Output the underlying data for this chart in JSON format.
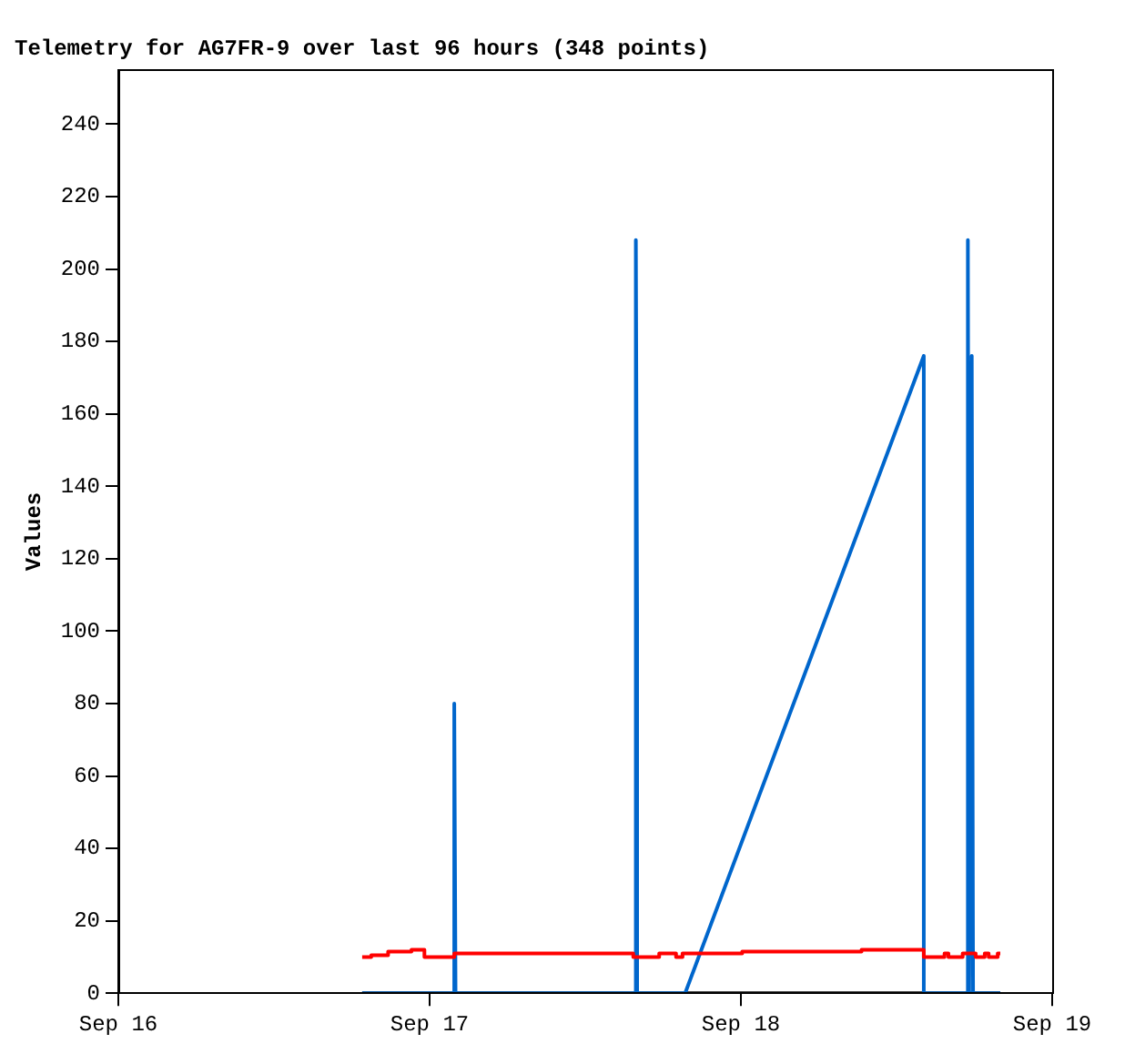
{
  "chart_data": {
    "type": "line",
    "title": "Telemetry for AG7FR-9 over last 96 hours (348 points)",
    "ylabel": "Values",
    "xlim": [
      "--09-16",
      "--09-19"
    ],
    "xticks": [
      {
        "value": "--09-16",
        "label": "Sep 16"
      },
      {
        "value": "--09-17",
        "label": "Sep 17"
      },
      {
        "value": "--09-18",
        "label": "Sep 18"
      },
      {
        "value": "--09-19",
        "label": "Sep 19"
      }
    ],
    "ylim": [
      0,
      255
    ],
    "yticks": [
      0,
      20,
      40,
      60,
      80,
      100,
      120,
      140,
      160,
      180,
      200,
      220,
      240
    ],
    "grid": false,
    "legend": false,
    "marker": "none",
    "line_style": "solid",
    "series": [
      {
        "type": "step",
        "color": "#ff0000",
        "x": [
          "--09-16T18:48",
          "--09-16T19:30",
          "--09-16T20:48",
          "--09-16T22:36",
          "--09-16T23:36",
          "--09-17T01:54",
          "--09-17T15:42",
          "--09-17T17:42",
          "--09-17T19:00",
          "--09-17T19:30",
          "--09-18T00:06",
          "--09-18T09:18",
          "--09-18T14:06",
          "--09-18T15:42",
          "--09-18T16:00",
          "--09-18T17:06",
          "--09-18T18:06",
          "--09-18T18:48",
          "--09-18T19:06",
          "--09-18T19:48",
          "--09-18T20:00"
        ],
        "values": [
          10,
          10.5,
          11.5,
          12,
          10,
          11,
          10,
          11,
          10,
          11,
          11.5,
          12,
          10,
          11,
          10,
          11,
          10,
          11,
          10,
          11,
          11
        ]
      },
      {
        "type": "line",
        "color": "#0066cc",
        "x": [
          "--09-16T18:48",
          "--09-17T01:54",
          "--09-17T01:54",
          "--09-17T02:00",
          "--09-17T15:54",
          "--09-17T15:54",
          "--09-17T16:00",
          "--09-17T16:00",
          "--09-17T19:42",
          "--09-18T14:06",
          "--09-18T14:06",
          "--09-18T17:30",
          "--09-18T17:30",
          "--09-18T17:36",
          "--09-18T17:48",
          "--09-18T17:54",
          "--09-18T20:00"
        ],
        "values": [
          0,
          0,
          80,
          0,
          0,
          208,
          104,
          0,
          0,
          176,
          0,
          0,
          208,
          0,
          176,
          0,
          0
        ]
      },
      {
        "type": "line",
        "color": "#000000",
        "x": [
          "--09-16T18:48",
          "--09-18T20:00"
        ],
        "values": [
          0,
          0
        ]
      }
    ]
  }
}
